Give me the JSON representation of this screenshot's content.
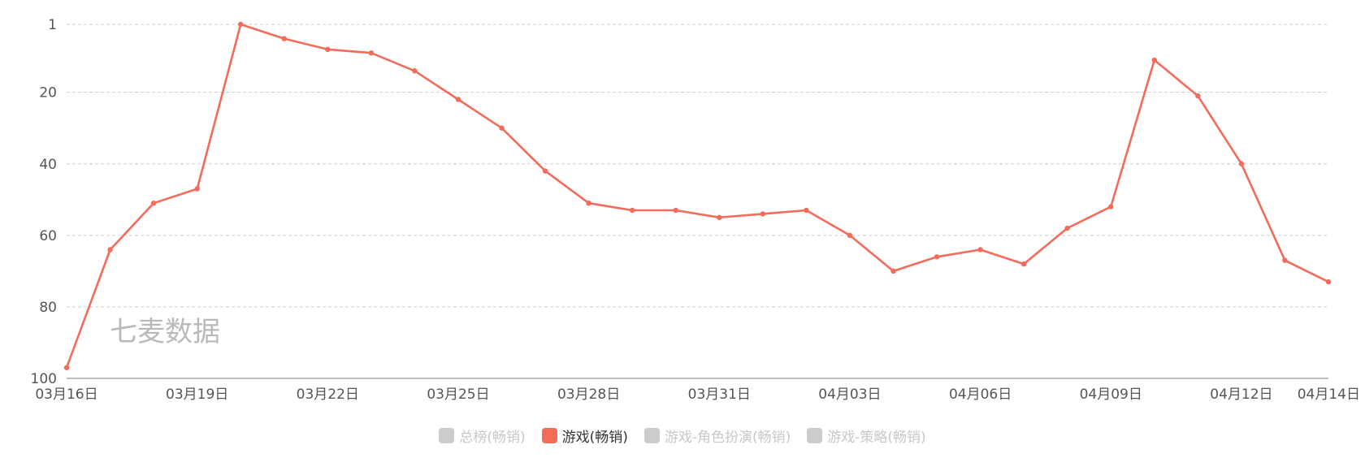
{
  "watermark": "七麦数据",
  "legend": [
    {
      "label": "总榜(畅销)",
      "active": false
    },
    {
      "label": "游戏(畅销)",
      "active": true
    },
    {
      "label": "游戏-角色扮演(畅销)",
      "active": false
    },
    {
      "label": "游戏-策略(畅销)",
      "active": false
    }
  ],
  "colors": {
    "series": "#f26b5b",
    "inactive": "#cccccc",
    "active_text": "#333333",
    "inactive_text": "#c8c8c8",
    "grid": "#cfcfcf",
    "axis": "#999999"
  },
  "chart_data": {
    "type": "line",
    "title": "",
    "xlabel": "",
    "ylabel": "",
    "y_inverted": true,
    "ylim": [
      1,
      100
    ],
    "y_ticks": [
      1,
      20,
      40,
      60,
      80,
      100
    ],
    "x_ticks": [
      "03月16日",
      "03月19日",
      "03月22日",
      "03月25日",
      "03月28日",
      "03月31日",
      "04月03日",
      "04月06日",
      "04月09日",
      "04月12日",
      "04月14日"
    ],
    "x": [
      "03月16日",
      "03月17日",
      "03月18日",
      "03月19日",
      "03月20日",
      "03月21日",
      "03月22日",
      "03月23日",
      "03月24日",
      "03月25日",
      "03月26日",
      "03月27日",
      "03月28日",
      "03月29日",
      "03月30日",
      "03月31日",
      "04月01日",
      "04月02日",
      "04月03日",
      "04月04日",
      "04月05日",
      "04月06日",
      "04月07日",
      "04月08日",
      "04月09日",
      "04月10日",
      "04月11日",
      "04月12日",
      "04月13日",
      "04月14日"
    ],
    "series": [
      {
        "name": "游戏(畅销)",
        "values": [
          97,
          64,
          51,
          47,
          1,
          5,
          8,
          9,
          14,
          22,
          30,
          42,
          51,
          53,
          53,
          55,
          54,
          53,
          60,
          70,
          66,
          64,
          68,
          58,
          52,
          11,
          21,
          40,
          67,
          73
        ]
      }
    ]
  }
}
